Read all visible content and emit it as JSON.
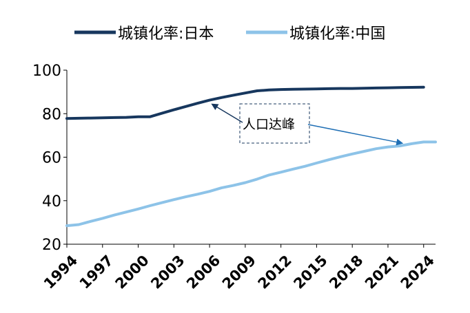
{
  "chart_data": {
    "type": "line",
    "title": "",
    "xlabel": "",
    "ylabel": "",
    "xlim": [
      1994,
      2025
    ],
    "ylim": [
      20,
      100
    ],
    "x_ticks": [
      1994,
      1997,
      2000,
      2003,
      2006,
      2009,
      2012,
      2015,
      2018,
      2021,
      2024
    ],
    "y_ticks": [
      20,
      40,
      60,
      80,
      100
    ],
    "grid": false,
    "legend_position": "top",
    "series": [
      {
        "name": "城镇化率:日本",
        "color": "#17375E",
        "x": [
          1994,
          1995,
          1996,
          1997,
          1998,
          1999,
          2000,
          2001,
          2002,
          2003,
          2004,
          2005,
          2006,
          2007,
          2008,
          2009,
          2010,
          2011,
          2012,
          2013,
          2014,
          2015,
          2016,
          2017,
          2018,
          2019,
          2020,
          2021,
          2022,
          2023,
          2024
        ],
        "y": [
          77.8,
          77.9,
          78.0,
          78.1,
          78.2,
          78.3,
          78.6,
          78.6,
          80.2,
          81.8,
          83.3,
          84.8,
          86.2,
          87.4,
          88.5,
          89.5,
          90.5,
          90.9,
          91.1,
          91.2,
          91.3,
          91.4,
          91.5,
          91.6,
          91.6,
          91.7,
          91.8,
          91.9,
          92.0,
          92.1,
          92.2
        ]
      },
      {
        "name": "城镇化率:中国",
        "color": "#8DC3E8",
        "x": [
          1994,
          1995,
          1996,
          1997,
          1998,
          1999,
          2000,
          2001,
          2002,
          2003,
          2004,
          2005,
          2006,
          2007,
          2008,
          2009,
          2010,
          2011,
          2012,
          2013,
          2014,
          2015,
          2016,
          2017,
          2018,
          2019,
          2020,
          2021,
          2022,
          2023,
          2024,
          2025
        ],
        "y": [
          28.5,
          29.0,
          30.5,
          31.9,
          33.4,
          34.8,
          36.2,
          37.7,
          39.1,
          40.5,
          41.8,
          43.0,
          44.3,
          45.9,
          47.0,
          48.3,
          49.9,
          51.8,
          53.1,
          54.5,
          55.8,
          57.3,
          58.8,
          60.2,
          61.5,
          62.7,
          63.9,
          64.7,
          65.2,
          66.2,
          67.0,
          67.0
        ]
      }
    ],
    "annotations": [
      {
        "text": "人口达峰",
        "points_to": [
          {
            "series": 0,
            "x": 2006
          },
          {
            "series": 1,
            "x": 2022
          }
        ]
      }
    ]
  }
}
